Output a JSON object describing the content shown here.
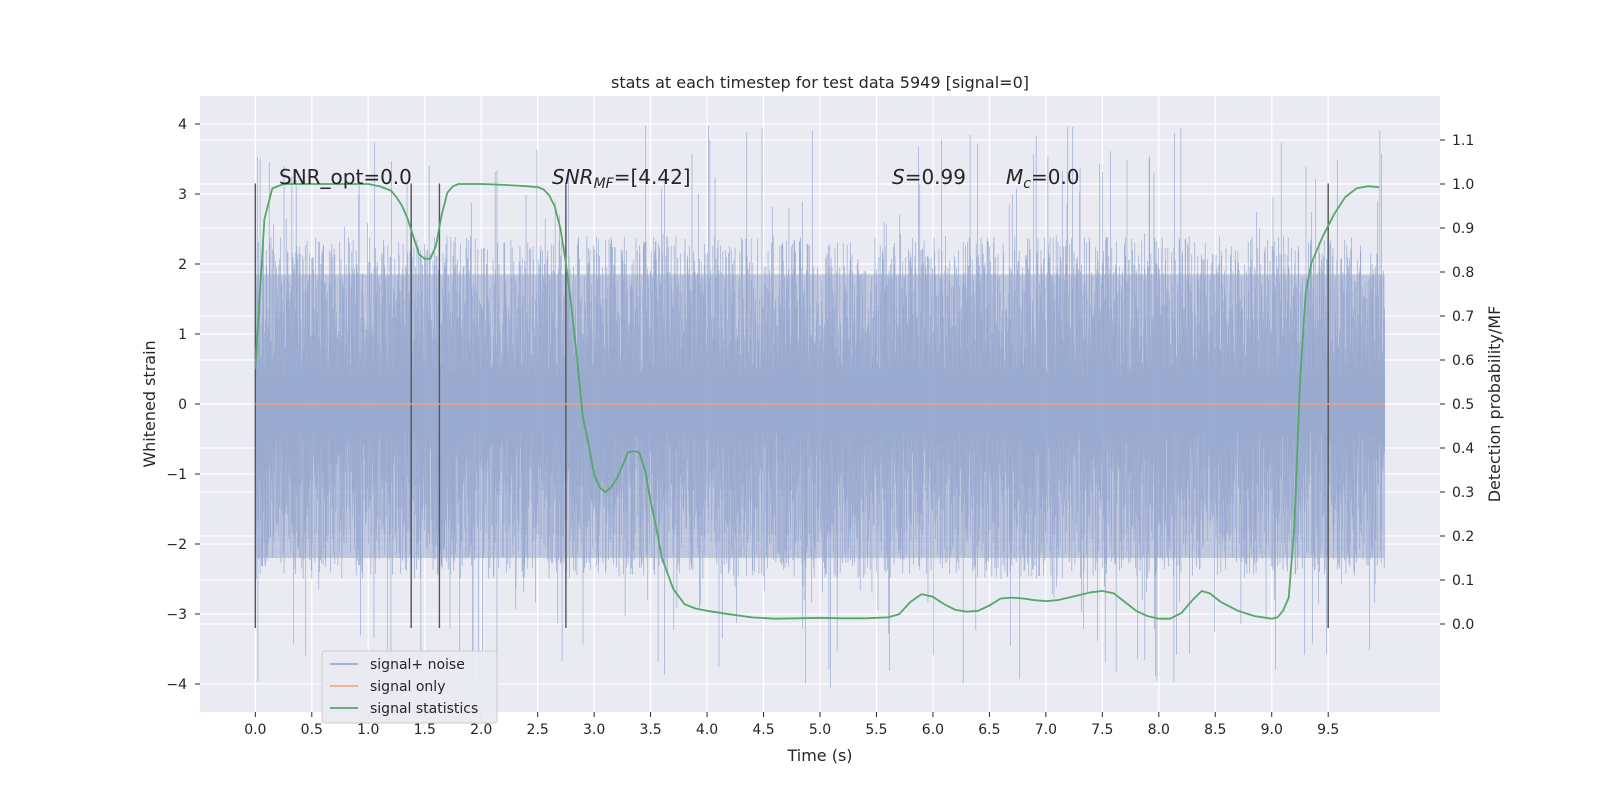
{
  "chart_data": {
    "type": "line",
    "title": "stats at each timestep for test data 5949 [signal=0]",
    "xlabel": "Time (s)",
    "ylabel_left": "Whitened strain",
    "ylabel_right": "Detection probability/MF",
    "xlim": [
      -0.49,
      10.49
    ],
    "ylim_left": [
      -4.4,
      4.4
    ],
    "ylim_right": [
      -0.2,
      1.2
    ],
    "grid": true,
    "x_ticks": [
      "0.0",
      "0.5",
      "1.0",
      "1.5",
      "2.0",
      "2.5",
      "3.0",
      "3.5",
      "4.0",
      "4.5",
      "5.0",
      "5.5",
      "6.0",
      "6.5",
      "7.0",
      "7.5",
      "8.0",
      "8.5",
      "9.0",
      "9.5"
    ],
    "y_ticks_left": [
      "−4",
      "−3",
      "−2",
      "−1",
      "0",
      "1",
      "2",
      "3",
      "4"
    ],
    "y_ticks_right": [
      "0.0",
      "0.1",
      "0.2",
      "0.3",
      "0.4",
      "0.5",
      "0.6",
      "0.7",
      "0.8",
      "0.9",
      "1.0",
      "1.1"
    ],
    "legend_position": "lower-left",
    "series": [
      {
        "name": "signal+ noise",
        "color": "#8da0cb",
        "noise_band": {
          "typical_min": -2.5,
          "typical_max": 2.4,
          "peak_max": 4.0,
          "peak_min": -4.1
        }
      },
      {
        "name": "signal only",
        "color": "#f2a07b",
        "x": [
          0.0,
          10.0
        ],
        "y": [
          0.0,
          0.0
        ]
      },
      {
        "name": "signal statistics",
        "color": "#55a868",
        "x": [
          0.0,
          0.08,
          0.15,
          0.25,
          0.4,
          0.6,
          0.8,
          1.0,
          1.1,
          1.2,
          1.25,
          1.3,
          1.35,
          1.4,
          1.45,
          1.5,
          1.55,
          1.6,
          1.65,
          1.7,
          1.75,
          1.8,
          2.0,
          2.2,
          2.4,
          2.5,
          2.55,
          2.6,
          2.65,
          2.7,
          2.75,
          2.8,
          2.85,
          2.9,
          2.95,
          3.0,
          3.05,
          3.1,
          3.15,
          3.2,
          3.25,
          3.3,
          3.35,
          3.4,
          3.45,
          3.5,
          3.55,
          3.6,
          3.7,
          3.8,
          3.9,
          4.0,
          4.2,
          4.4,
          4.6,
          4.8,
          5.0,
          5.2,
          5.4,
          5.6,
          5.7,
          5.8,
          5.9,
          6.0,
          6.1,
          6.2,
          6.3,
          6.4,
          6.5,
          6.6,
          6.7,
          6.8,
          6.9,
          7.0,
          7.1,
          7.2,
          7.3,
          7.4,
          7.5,
          7.6,
          7.7,
          7.8,
          7.9,
          8.0,
          8.1,
          8.2,
          8.3,
          8.38,
          8.45,
          8.55,
          8.7,
          8.85,
          9.0,
          9.05,
          9.1,
          9.15,
          9.2,
          9.25,
          9.3,
          9.35,
          9.45,
          9.55,
          9.65,
          9.75,
          9.85,
          9.95
        ],
        "y": [
          0.58,
          0.92,
          0.99,
          1.0,
          1.0,
          1.0,
          1.0,
          1.0,
          0.995,
          0.985,
          0.97,
          0.95,
          0.92,
          0.88,
          0.84,
          0.83,
          0.83,
          0.86,
          0.93,
          0.98,
          0.995,
          1.0,
          1.0,
          0.998,
          0.995,
          0.993,
          0.988,
          0.975,
          0.95,
          0.9,
          0.82,
          0.72,
          0.6,
          0.47,
          0.41,
          0.34,
          0.31,
          0.3,
          0.31,
          0.33,
          0.36,
          0.39,
          0.393,
          0.39,
          0.35,
          0.28,
          0.22,
          0.15,
          0.08,
          0.045,
          0.035,
          0.03,
          0.022,
          0.015,
          0.012,
          0.013,
          0.014,
          0.013,
          0.013,
          0.015,
          0.022,
          0.05,
          0.068,
          0.062,
          0.045,
          0.032,
          0.028,
          0.03,
          0.042,
          0.058,
          0.06,
          0.058,
          0.054,
          0.052,
          0.054,
          0.06,
          0.066,
          0.072,
          0.075,
          0.07,
          0.05,
          0.03,
          0.018,
          0.012,
          0.012,
          0.025,
          0.055,
          0.075,
          0.07,
          0.05,
          0.03,
          0.018,
          0.012,
          0.015,
          0.03,
          0.06,
          0.22,
          0.55,
          0.75,
          0.82,
          0.88,
          0.93,
          0.97,
          0.99,
          0.995,
          0.993
        ]
      }
    ],
    "vlines": [
      0.0,
      1.38,
      1.63,
      2.75,
      9.5
    ],
    "vline_range": [
      -3.2,
      3.15
    ],
    "annotations": [
      {
        "key": "snr_opt",
        "text": "SNR_opt=0.0"
      },
      {
        "key": "snr_mf",
        "base": "SNR",
        "sub": "MF",
        "rest": "=[4.42]"
      },
      {
        "key": "s",
        "base": "S",
        "rest": "=0.99"
      },
      {
        "key": "mc",
        "base": "M",
        "sub": "c",
        "rest": "=0.0"
      }
    ]
  }
}
